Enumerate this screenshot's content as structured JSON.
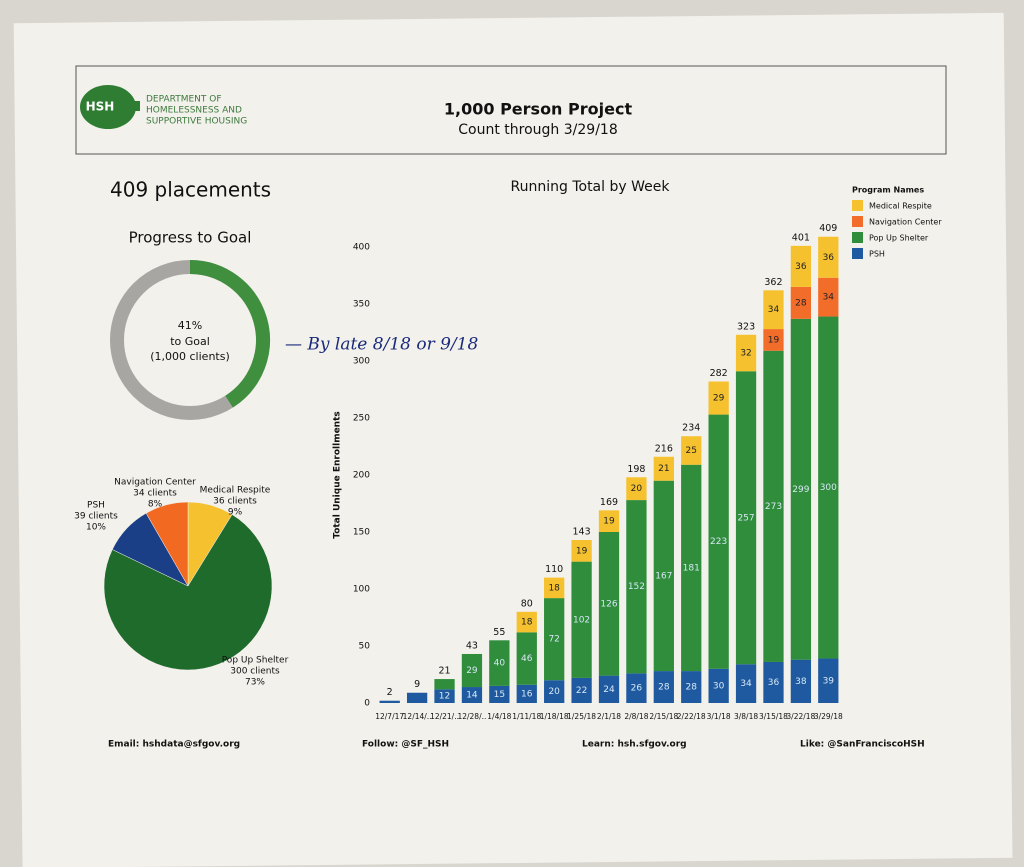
{
  "header": {
    "logo": "HSH",
    "department": [
      "DEPARTMENT OF",
      "HOMELESSNESS AND",
      "SUPPORTIVE HOUSING"
    ],
    "title": "1,000 Person Project",
    "subtitle": "Count through 3/29/18"
  },
  "headline": "409 placements",
  "annotation": "— By late 8/18 or 9/18",
  "footer": [
    "Email: hshdata@sfgov.org",
    "Follow: @SF_HSH",
    "Learn: hsh.sfgov.org",
    "Like: @SanFranciscoHSH"
  ],
  "chart_data": [
    {
      "type": "donut",
      "title": "Progress to Goal",
      "value": 41,
      "value_label": "41%",
      "text": [
        "to Goal",
        "(1,000 clients)"
      ],
      "color": "#3f8f3f",
      "rest_color": "#a8a6a2"
    },
    {
      "type": "pie",
      "categories": [
        "Medical Respite",
        "Pop Up Shelter",
        "PSH",
        "Navigation Center"
      ],
      "values": [
        36,
        300,
        39,
        34
      ],
      "value_labels": [
        "36 clients",
        "300 clients",
        "39 clients",
        "34 clients"
      ],
      "percents": [
        9,
        73,
        10,
        8
      ],
      "percent_labels": [
        "9%",
        "73%",
        "10%",
        "8%"
      ],
      "colors": [
        "#f5c12e",
        "#1f6b2c",
        "#1b3f86",
        "#f26a22"
      ]
    },
    {
      "type": "stacked_bar",
      "title": "Running Total by Week",
      "y_label": "Total Unique Enrollments",
      "legend_title": "Program Names",
      "categories": [
        "12/7/17",
        "12/14/..",
        "12/21/..",
        "12/28/..",
        "1/4/18",
        "1/11/18",
        "1/18/18",
        "1/25/18",
        "2/1/18",
        "2/8/18",
        "2/15/18",
        "2/22/18",
        "3/1/18",
        "3/8/18",
        "3/15/18",
        "3/22/18",
        "3/29/18"
      ],
      "series": [
        {
          "name": "PSH",
          "color": "#1f5aa0",
          "values": [
            2,
            9,
            12,
            14,
            15,
            16,
            20,
            22,
            24,
            26,
            28,
            28,
            30,
            34,
            36,
            38,
            39
          ]
        },
        {
          "name": "Pop Up Shelter",
          "color": "#2f8d3c",
          "values": [
            0,
            0,
            9,
            29,
            40,
            46,
            72,
            102,
            126,
            152,
            167,
            181,
            223,
            257,
            273,
            299,
            300
          ]
        },
        {
          "name": "Navigation Center",
          "color": "#f26c2a",
          "values": [
            0,
            0,
            0,
            0,
            0,
            0,
            0,
            0,
            0,
            0,
            0,
            0,
            0,
            0,
            19,
            28,
            34
          ]
        },
        {
          "name": "Medical Respite",
          "color": "#f5c12e",
          "values": [
            0,
            0,
            0,
            0,
            0,
            18,
            18,
            19,
            19,
            20,
            21,
            25,
            29,
            32,
            34,
            36,
            36
          ]
        }
      ],
      "totals": [
        2,
        9,
        21,
        43,
        55,
        80,
        110,
        143,
        169,
        198,
        216,
        234,
        282,
        323,
        362,
        401,
        409
      ],
      "ylim": [
        0,
        420
      ],
      "yticks": [
        0,
        50,
        100,
        150,
        200,
        250,
        300,
        350,
        400
      ],
      "legend": "top-right"
    }
  ]
}
